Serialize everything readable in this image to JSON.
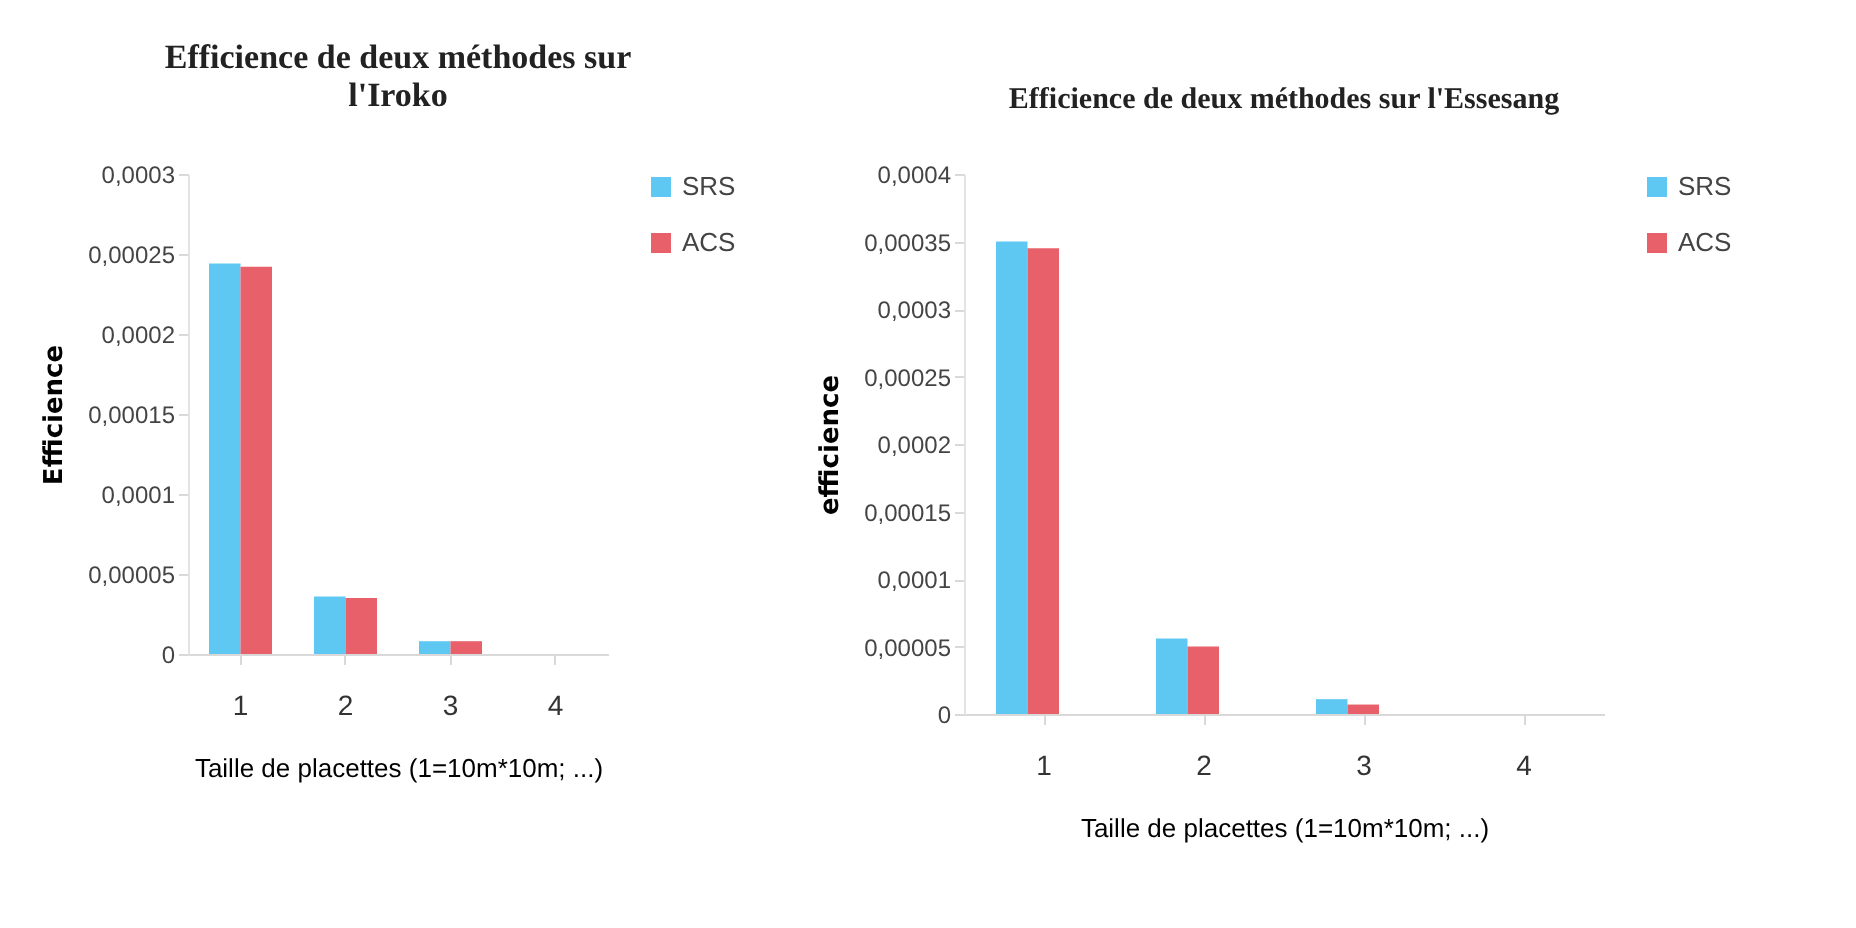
{
  "chart_data": [
    {
      "type": "bar",
      "title": "Efficience de deux méthodes sur l'Iroko",
      "xlabel": "Taille de placettes (1=10m*10m; ...)",
      "ylabel": "Efficience",
      "categories": [
        "1",
        "2",
        "3",
        "4"
      ],
      "series": [
        {
          "name": "SRS",
          "color": "#5ec8f2",
          "values": [
            0.000244,
            3.6e-05,
            8e-06,
            0
          ]
        },
        {
          "name": "ACS",
          "color": "#e8606a",
          "values": [
            0.000242,
            3.5e-05,
            8e-06,
            0
          ]
        }
      ],
      "ylim": [
        0,
        0.0003
      ],
      "yticks": [
        {
          "value": 0,
          "label": "0"
        },
        {
          "value": 5e-05,
          "label": "0,00005"
        },
        {
          "value": 0.0001,
          "label": "0,0001"
        },
        {
          "value": 0.00015,
          "label": "0,00015"
        },
        {
          "value": 0.0002,
          "label": "0,0002"
        },
        {
          "value": 0.00025,
          "label": "0,00025"
        },
        {
          "value": 0.0003,
          "label": "0,0003"
        }
      ],
      "grid": false,
      "legend": "right"
    },
    {
      "type": "bar",
      "title": "Efficience de deux méthodes sur l'Essesang",
      "xlabel": "Taille de placettes (1=10m*10m; ...)",
      "ylabel": "efficience",
      "categories": [
        "1",
        "2",
        "3",
        "4"
      ],
      "series": [
        {
          "name": "SRS",
          "color": "#5ec8f2",
          "values": [
            0.00035,
            5.6e-05,
            1.1e-05,
            0
          ]
        },
        {
          "name": "ACS",
          "color": "#e8606a",
          "values": [
            0.000345,
            5e-05,
            7e-06,
            0
          ]
        }
      ],
      "ylim": [
        0,
        0.0004
      ],
      "yticks": [
        {
          "value": 0,
          "label": "0"
        },
        {
          "value": 5e-05,
          "label": "0,00005"
        },
        {
          "value": 0.0001,
          "label": "0,0001"
        },
        {
          "value": 0.00015,
          "label": "0,00015"
        },
        {
          "value": 0.0002,
          "label": "0,0002"
        },
        {
          "value": 0.00025,
          "label": "0,00025"
        },
        {
          "value": 0.0003,
          "label": "0,0003"
        },
        {
          "value": 0.00035,
          "label": "0,00035"
        },
        {
          "value": 0.0004,
          "label": "0,0004"
        }
      ],
      "grid": false,
      "legend": "right"
    }
  ]
}
